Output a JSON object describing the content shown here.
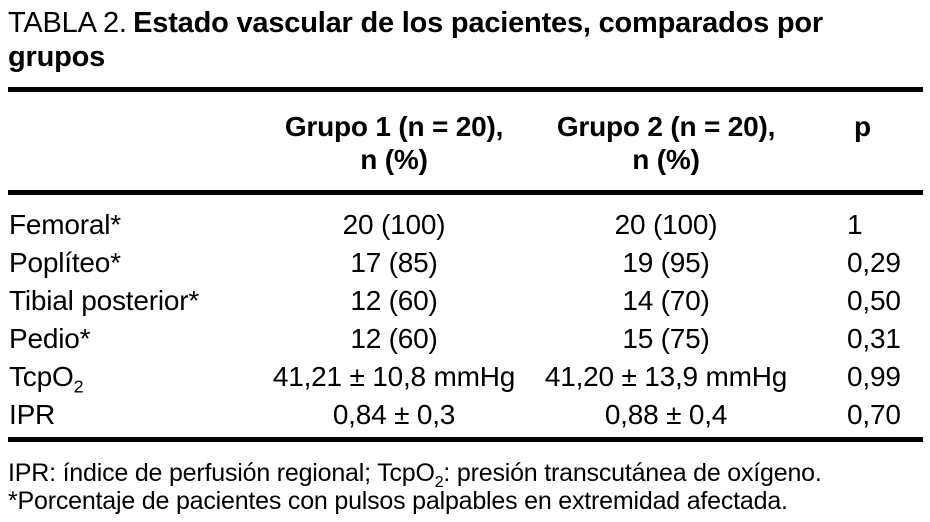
{
  "title": {
    "prefix": "TABLA 2.",
    "text": "Estado vascular de los pacientes, comparados por grupos"
  },
  "table": {
    "columns": {
      "group1": {
        "line1": "Grupo 1 (n = 20),",
        "line2": "n (%)"
      },
      "group2": {
        "line1": "Grupo 2 (n = 20),",
        "line2": "n (%)"
      },
      "p": "p"
    },
    "rows": [
      {
        "label": "Femoral*",
        "group1": "20 (100)",
        "group2": "20 (100)",
        "p": "1"
      },
      {
        "label": "Poplíteo*",
        "group1": "17 (85)",
        "group2": "19 (95)",
        "p": "0,29"
      },
      {
        "label": "Tibial posterior*",
        "group1": "12 (60)",
        "group2": "14 (70)",
        "p": "0,50"
      },
      {
        "label": "Pedio*",
        "group1": "12 (60)",
        "group2": "15 (75)",
        "p": "0,31"
      },
      {
        "label_main": "TcpO",
        "label_sub": "2",
        "group1": "41,21 ± 10,8 mmHg",
        "group2": "41,20 ± 13,9 mmHg",
        "p": "0,99"
      },
      {
        "label": "IPR",
        "group1": "0,84 ± 0,3",
        "group2": "0,88 ± 0,4",
        "p": "0,70"
      }
    ]
  },
  "footnotes": {
    "line1_pre": "IPR: índice de perfusión regional; TcpO",
    "line1_sub": "2",
    "line1_post": ": presión transcutánea de oxígeno.",
    "line2": "*Porcentaje de pacientes con pulsos palpables en extremidad afectada."
  },
  "colors": {
    "text": "#000000",
    "background": "#ffffff",
    "rule": "#000000"
  }
}
